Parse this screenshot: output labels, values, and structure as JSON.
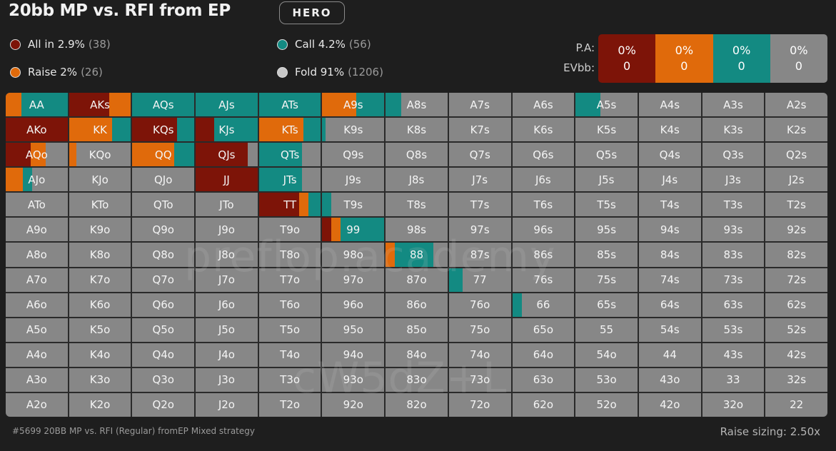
{
  "title": "20bb MP vs. RFI from EP",
  "hero_label": "HERO",
  "colors": {
    "allin": "#7d1408",
    "raise": "#e06a0b",
    "call": "#138a82",
    "fold": "#878787"
  },
  "legend": [
    {
      "label": "All in 2.9%",
      "count": "(38)",
      "color": "#7d1408"
    },
    {
      "label": "Raise 2%",
      "count": "(26)",
      "color": "#e06a0b"
    },
    {
      "label": "Call 4.2%",
      "count": "(56)",
      "color": "#138a82"
    },
    {
      "label": "Fold 91%",
      "count": "(1206)",
      "color": "#c8c8c8"
    }
  ],
  "stats": {
    "pa_label": "P.A:",
    "ev_label": "EVbb:",
    "cols": [
      {
        "pa": "0%",
        "ev": "0",
        "color": "#7d1408"
      },
      {
        "pa": "0%",
        "ev": "0",
        "color": "#e06a0b"
      },
      {
        "pa": "0%",
        "ev": "0",
        "color": "#138a82"
      },
      {
        "pa": "0%",
        "ev": "0",
        "color": "#878787"
      }
    ]
  },
  "matrix": {
    "rows": [
      [
        "AA",
        "AKs",
        "AQs",
        "AJs",
        "ATs",
        "A9s",
        "A8s",
        "A7s",
        "A6s",
        "A5s",
        "A4s",
        "A3s",
        "A2s"
      ],
      [
        "AKo",
        "KK",
        "KQs",
        "KJs",
        "KTs",
        "K9s",
        "K8s",
        "K7s",
        "K6s",
        "K5s",
        "K4s",
        "K3s",
        "K2s"
      ],
      [
        "AQo",
        "KQo",
        "QQ",
        "QJs",
        "QTs",
        "Q9s",
        "Q8s",
        "Q7s",
        "Q6s",
        "Q5s",
        "Q4s",
        "Q3s",
        "Q2s"
      ],
      [
        "AJo",
        "KJo",
        "QJo",
        "JJ",
        "JTs",
        "J9s",
        "J8s",
        "J7s",
        "J6s",
        "J5s",
        "J4s",
        "J3s",
        "J2s"
      ],
      [
        "ATo",
        "KTo",
        "QTo",
        "JTo",
        "TT",
        "T9s",
        "T8s",
        "T7s",
        "T6s",
        "T5s",
        "T4s",
        "T3s",
        "T2s"
      ],
      [
        "A9o",
        "K9o",
        "Q9o",
        "J9o",
        "T9o",
        "99",
        "98s",
        "97s",
        "96s",
        "95s",
        "94s",
        "93s",
        "92s"
      ],
      [
        "A8o",
        "K8o",
        "Q8o",
        "J8o",
        "T8o",
        "98o",
        "88",
        "87s",
        "86s",
        "85s",
        "84s",
        "83s",
        "82s"
      ],
      [
        "A7o",
        "K7o",
        "Q7o",
        "J7o",
        "T7o",
        "97o",
        "87o",
        "77",
        "76s",
        "75s",
        "74s",
        "73s",
        "72s"
      ],
      [
        "A6o",
        "K6o",
        "Q6o",
        "J6o",
        "T6o",
        "96o",
        "86o",
        "76o",
        "66",
        "65s",
        "64s",
        "63s",
        "62s"
      ],
      [
        "A5o",
        "K5o",
        "Q5o",
        "J5o",
        "T5o",
        "95o",
        "85o",
        "75o",
        "65o",
        "55",
        "54s",
        "53s",
        "52s"
      ],
      [
        "A4o",
        "K4o",
        "Q4o",
        "J4o",
        "T4o",
        "94o",
        "84o",
        "74o",
        "64o",
        "54o",
        "44",
        "43s",
        "42s"
      ],
      [
        "A3o",
        "K3o",
        "Q3o",
        "J3o",
        "T3o",
        "93o",
        "83o",
        "73o",
        "63o",
        "53o",
        "43o",
        "33",
        "32s"
      ],
      [
        "A2o",
        "K2o",
        "Q2o",
        "J2o",
        "T2o",
        "92o",
        "82o",
        "72o",
        "62o",
        "52o",
        "42o",
        "32o",
        "22"
      ]
    ],
    "strategies": {
      "AA": {
        "allin": 0,
        "raise": 0.25,
        "call": 0.75
      },
      "AKs": {
        "allin": 0.65,
        "raise": 0.35,
        "call": 0
      },
      "AQs": {
        "allin": 0,
        "raise": 0,
        "call": 1
      },
      "AJs": {
        "allin": 0,
        "raise": 0,
        "call": 1
      },
      "ATs": {
        "allin": 0,
        "raise": 0,
        "call": 1
      },
      "A9s": {
        "allin": 0,
        "raise": 0.55,
        "call": 0.45
      },
      "A8s": {
        "allin": 0,
        "raise": 0,
        "call": 0.25
      },
      "A5s": {
        "allin": 0,
        "raise": 0,
        "call": 0.4
      },
      "AKo": {
        "allin": 1,
        "raise": 0,
        "call": 0
      },
      "KK": {
        "allin": 0,
        "raise": 0.7,
        "call": 0.3
      },
      "KQs": {
        "allin": 0.72,
        "raise": 0,
        "call": 0.28
      },
      "KJs": {
        "allin": 0.3,
        "raise": 0,
        "call": 0.7
      },
      "KTs": {
        "allin": 0,
        "raise": 0.72,
        "call": 0.28
      },
      "K9s": {
        "allin": 0,
        "raise": 0,
        "call": 0.05
      },
      "AQo": {
        "allin": 0.4,
        "raise": 0.25,
        "call": 0
      },
      "KQo": {
        "allin": 0,
        "raise": 0.12,
        "call": 0
      },
      "QQ": {
        "allin": 0,
        "raise": 0.68,
        "call": 0.32
      },
      "QJs": {
        "allin": 0.84,
        "raise": 0,
        "call": 0
      },
      "QTs": {
        "allin": 0,
        "raise": 0,
        "call": 0.7
      },
      "AJo": {
        "allin": 0,
        "raise": 0.28,
        "call": 0.15
      },
      "JJ": {
        "allin": 1,
        "raise": 0,
        "call": 0
      },
      "JTs": {
        "allin": 0,
        "raise": 0,
        "call": 0.7
      },
      "TT": {
        "allin": 0.65,
        "raise": 0.15,
        "call": 0.2
      },
      "T9s": {
        "allin": 0,
        "raise": 0,
        "call": 0.15
      },
      "T9o": {
        "allin": 0,
        "raise": 0,
        "call": 0
      },
      "99": {
        "allin": 0.15,
        "raise": 0.15,
        "call": 0.7
      },
      "88": {
        "allin": 0,
        "raise": 0.15,
        "call": 0.62
      },
      "77": {
        "allin": 0,
        "raise": 0,
        "call": 0.22
      },
      "66": {
        "allin": 0,
        "raise": 0,
        "call": 0.15
      }
    }
  },
  "watermark": {
    "line1": "preflop.academy",
    "line2": "cW5dZ+L"
  },
  "footer": {
    "note": "#5699 20BB MP vs. RFI (Regular) fromEP Mixed strategy",
    "sizing": "Raise sizing: 2.50x"
  }
}
